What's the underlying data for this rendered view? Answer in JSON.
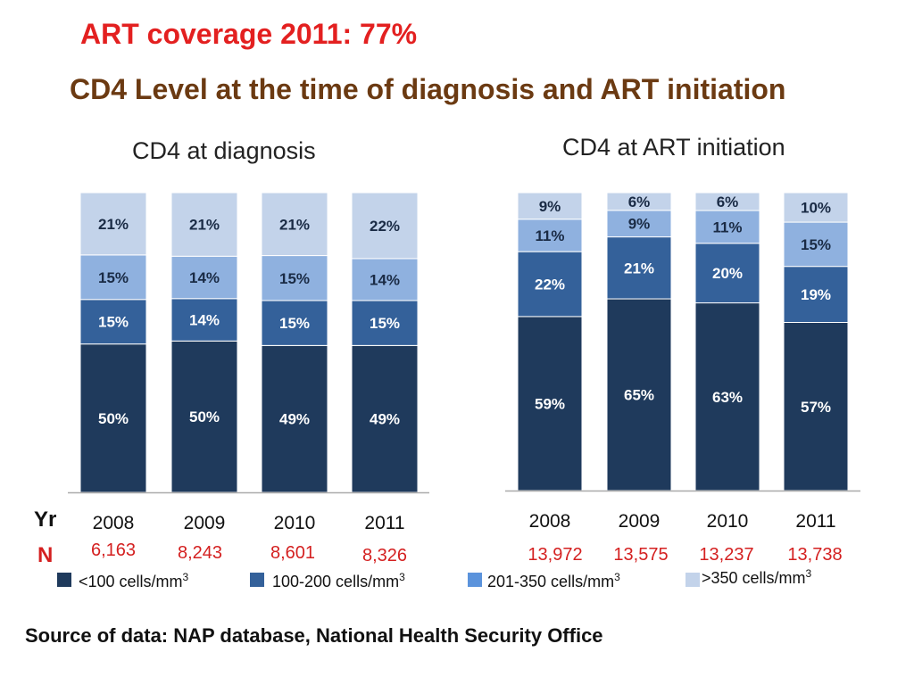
{
  "header": {
    "coverage": "ART coverage 2011: 77%",
    "title": "CD4 Level at the time of diagnosis and ART initiation"
  },
  "row_labels": {
    "year": "Yr",
    "n": "N"
  },
  "chart_data": [
    {
      "type": "bar",
      "stacked": true,
      "title": "CD4 at diagnosis",
      "categories": [
        "2008",
        "2009",
        "2010",
        "2011"
      ],
      "n": [
        "6,163",
        "8,243",
        "8,601",
        "8,326"
      ],
      "ylim": [
        0,
        100
      ],
      "series": [
        {
          "name": "<100 cells/mm3",
          "color": "#1f3a5c",
          "values": [
            50,
            50,
            49,
            49
          ],
          "labels": [
            "50%",
            "50%",
            "49%",
            "49%"
          ]
        },
        {
          "name": "100-200 cells/mm3",
          "color": "#34619a",
          "values": [
            15,
            14,
            15,
            15
          ],
          "labels": [
            "15%",
            "14%",
            "15%",
            "15%"
          ]
        },
        {
          "name": "201-350 cells/mm3",
          "color": "#8fb1df",
          "values": [
            15,
            14,
            15,
            14
          ],
          "labels": [
            "15%",
            "14%",
            "15%",
            "14%"
          ]
        },
        {
          "name": ">350 cells/mm3",
          "color": "#c3d3ea",
          "values": [
            21,
            21,
            21,
            22
          ],
          "labels": [
            "21%",
            "21%",
            "21%",
            "22%"
          ]
        }
      ]
    },
    {
      "type": "bar",
      "stacked": true,
      "title": "CD4 at ART initiation",
      "categories": [
        "2008",
        "2009",
        "2010",
        "2011"
      ],
      "n": [
        "13,972",
        "13,575",
        "13,237",
        "13,738"
      ],
      "ylim": [
        0,
        100
      ],
      "series": [
        {
          "name": "<100 cells/mm3",
          "color": "#1f3a5c",
          "values": [
            59,
            65,
            63,
            57
          ],
          "labels": [
            "59%",
            "65%",
            "63%",
            "57%"
          ]
        },
        {
          "name": "100-200 cells/mm3",
          "color": "#34619a",
          "values": [
            22,
            21,
            20,
            19
          ],
          "labels": [
            "22%",
            "21%",
            "20%",
            "19%"
          ]
        },
        {
          "name": "201-350 cells/mm3",
          "color": "#8fb1df",
          "values": [
            11,
            9,
            11,
            15
          ],
          "labels": [
            "11%",
            "9%",
            "11%",
            "15%"
          ]
        },
        {
          "name": ">350 cells/mm3",
          "color": "#c3d3ea",
          "values": [
            9,
            6,
            6,
            10
          ],
          "labels": [
            "9%",
            "6%",
            "6%",
            "10%"
          ]
        }
      ]
    }
  ],
  "legend": [
    {
      "prefix": "<100 cells/mm",
      "sup": "3",
      "color": "#1f3a5c"
    },
    {
      "prefix": "100-200 cells/mm",
      "sup": "3",
      "color": "#34619a"
    },
    {
      "prefix": "201-350 cells/mm",
      "sup": "3",
      "color": "#5b93dc"
    },
    {
      "prefix": ">350 cells/mm",
      "sup": "3",
      "color": "#c3d3ea"
    }
  ],
  "source": "Source of data: NAP database, National Health Security Office"
}
